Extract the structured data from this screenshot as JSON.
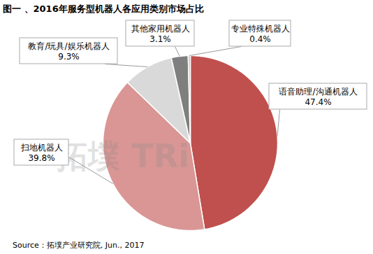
{
  "chart_data": {
    "type": "pie",
    "title": "图一 、2016年服务型机器人各应用类别市场占比",
    "categories": [
      "语音助理/沟通机器人",
      "扫地机器人",
      "教育/玩具/娱乐机器人",
      "其他家用机器人",
      "专业特殊机器人"
    ],
    "values": [
      47.4,
      39.8,
      9.3,
      3.1,
      0.4
    ],
    "value_labels": [
      "47.4%",
      "39.8%",
      "9.3%",
      "3.1%",
      "0.4%"
    ],
    "colors": [
      "#c0504d",
      "#d99694",
      "#d9d9d9",
      "#7f7f7f",
      "#bfbfbf"
    ],
    "data_labels": true,
    "annotations": [
      "拓墣 TRi"
    ],
    "caption": "Source：拓墣产业研究院, Jun., 2017"
  }
}
